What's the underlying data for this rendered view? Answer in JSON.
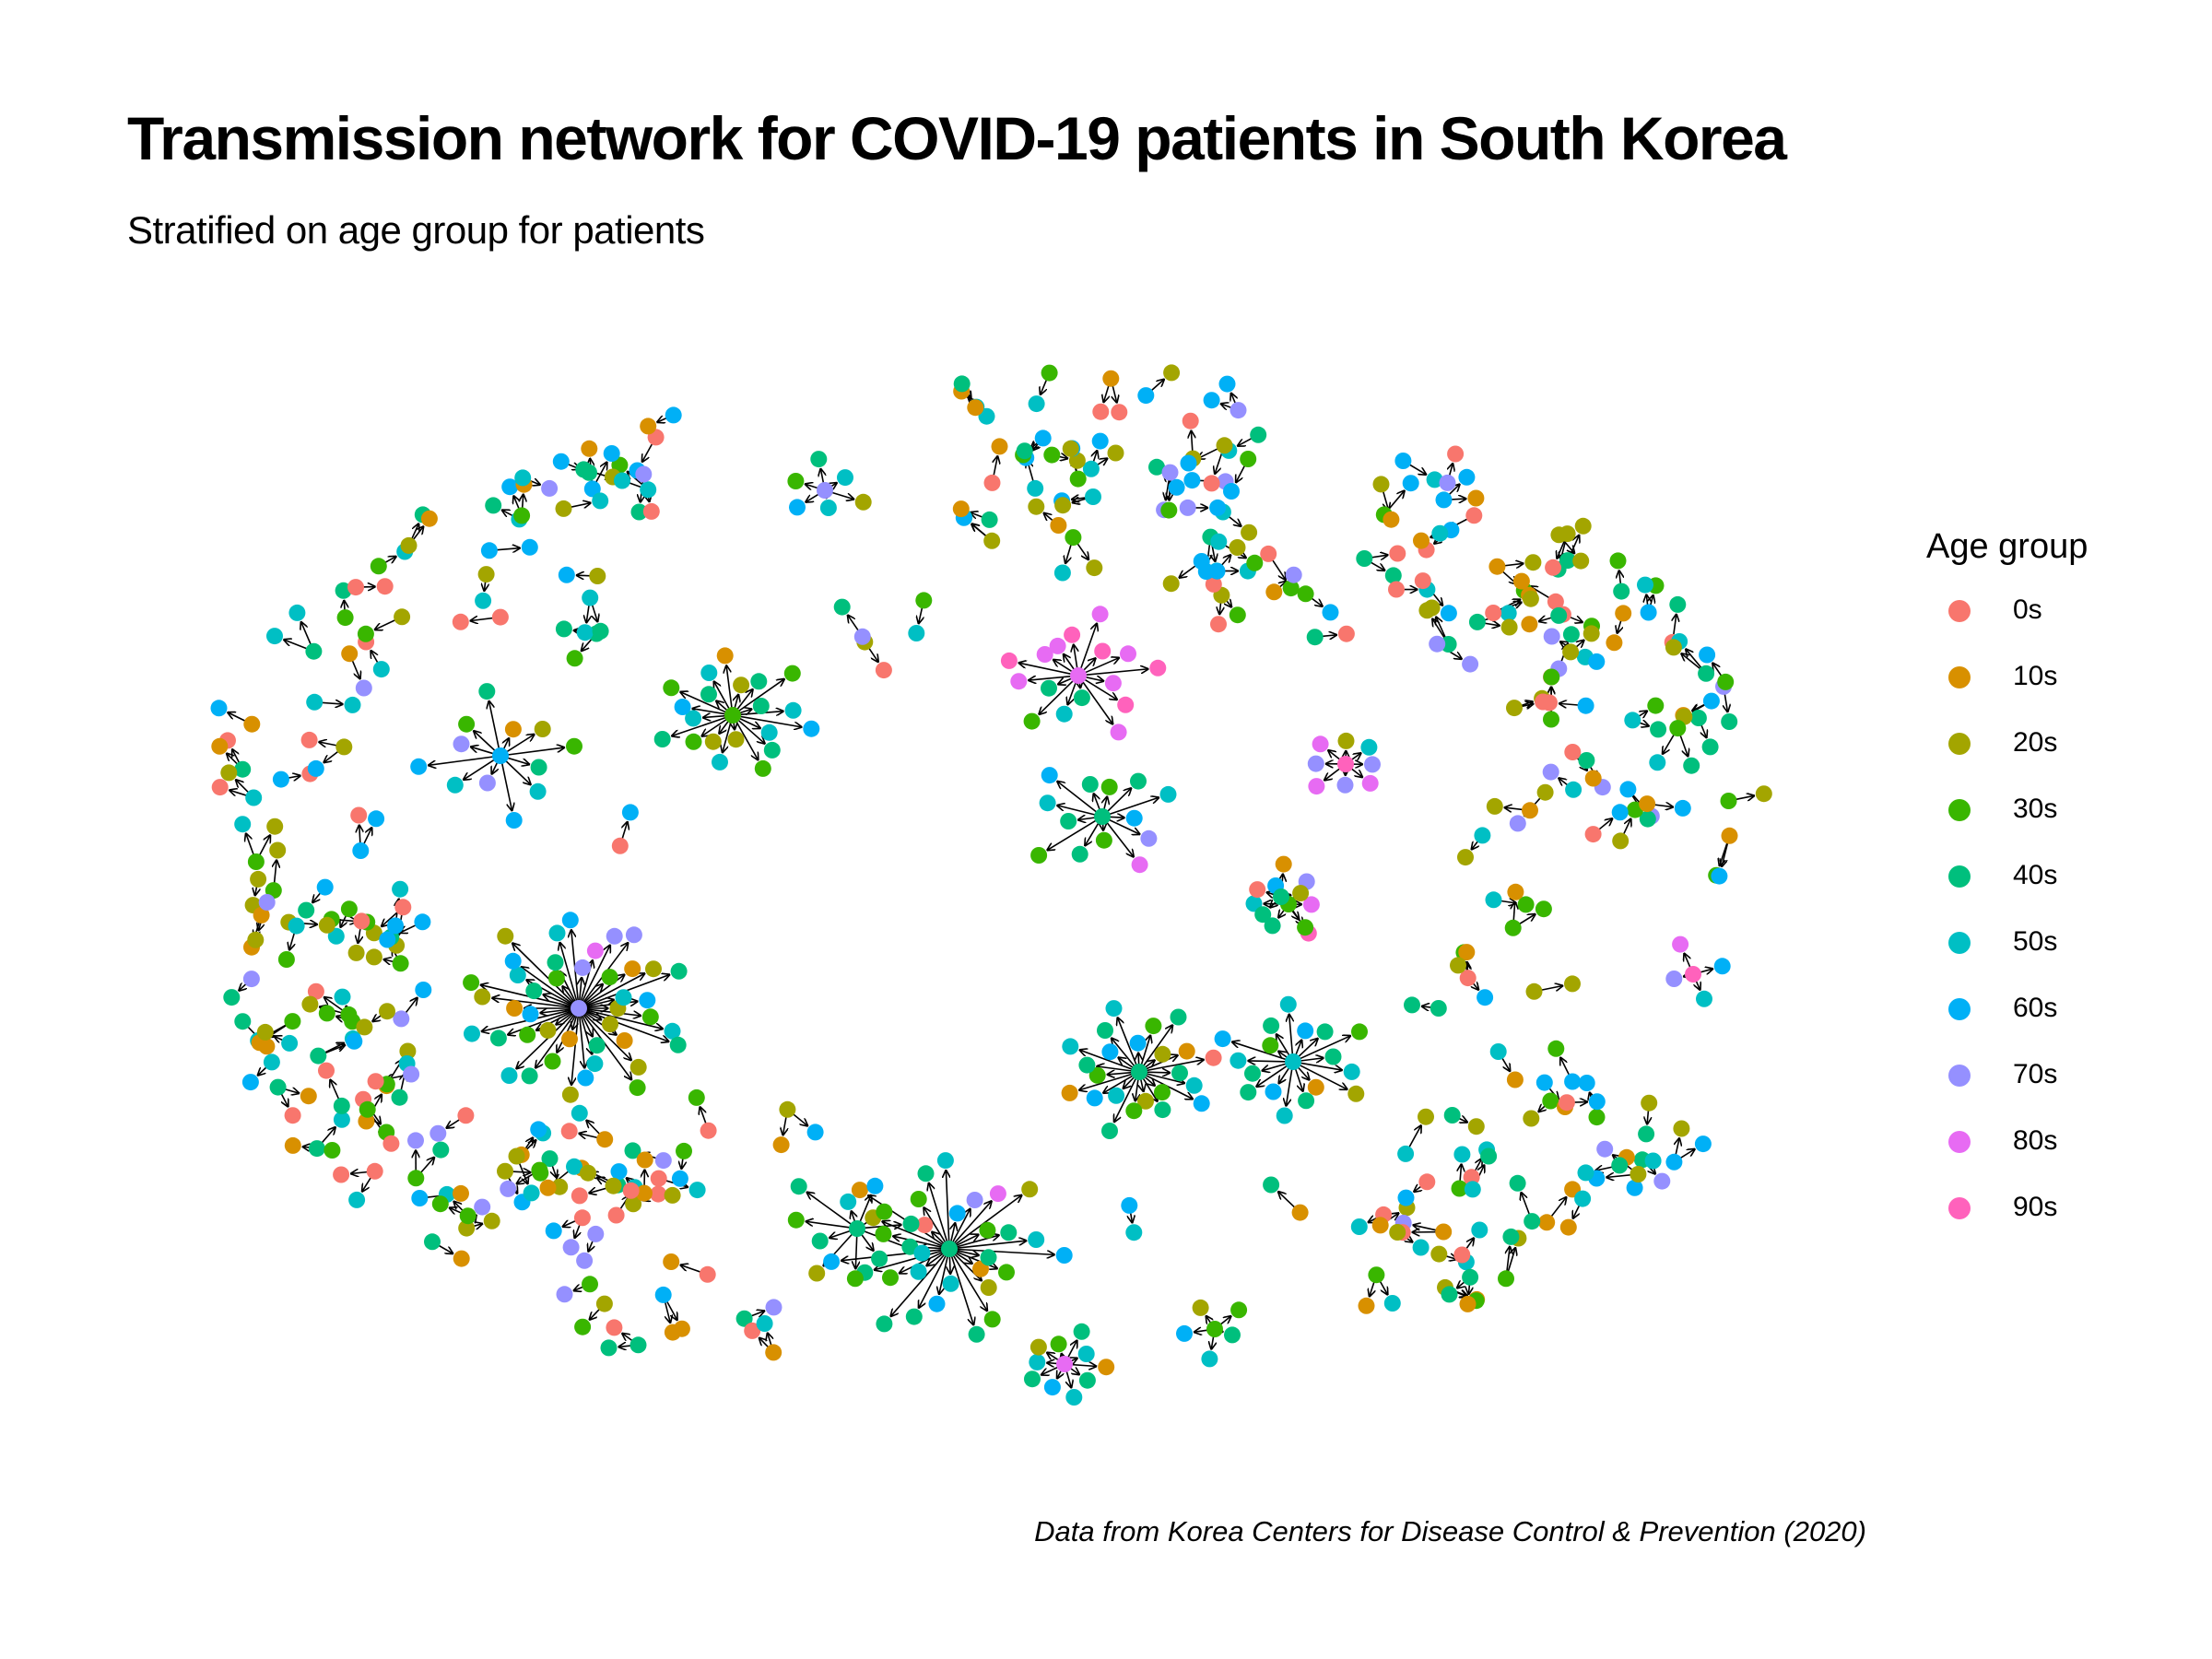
{
  "title": "Transmission network for COVID-19 patients in South Korea",
  "subtitle": "Stratified on age group for patients",
  "caption": "Data from Korea Centers for Disease Control & Prevention (2020)",
  "legend": {
    "title": "Age group",
    "items": [
      {
        "label": "0s",
        "color": "#F8766D"
      },
      {
        "label": "10s",
        "color": "#D89000"
      },
      {
        "label": "20s",
        "color": "#A3A500"
      },
      {
        "label": "30s",
        "color": "#39B600"
      },
      {
        "label": "40s",
        "color": "#00BF7D"
      },
      {
        "label": "50s",
        "color": "#00BFC4"
      },
      {
        "label": "60s",
        "color": "#00B0F6"
      },
      {
        "label": "70s",
        "color": "#9590FF"
      },
      {
        "label": "80s",
        "color": "#E76BF3"
      },
      {
        "label": "90s",
        "color": "#FF62BC"
      }
    ]
  },
  "chart_data": {
    "type": "network",
    "directed": true,
    "node_color_by": "age_group",
    "groups": [
      "0s",
      "10s",
      "20s",
      "30s",
      "40s",
      "50s",
      "60s",
      "70s",
      "80s",
      "90s"
    ],
    "clusters": [
      {
        "source": "70s",
        "targets": [
          "20s",
          "30s",
          "50s",
          "40s",
          "20s",
          "10s",
          "20s",
          "30s",
          "40s",
          "50s",
          "60s",
          "20s",
          "10s",
          "30s",
          "40s",
          "50s",
          "20s",
          "30s",
          "40s",
          "50s",
          "60s",
          "10s",
          "20s",
          "30s",
          "40s",
          "50s",
          "60s",
          "20s",
          "30s",
          "40s",
          "50s",
          "60s",
          "70s",
          "80s",
          "70s",
          "70s",
          "30s",
          "10s",
          "20s",
          "40s",
          "50s",
          "60s"
        ]
      },
      {
        "source": "40s",
        "targets": [
          "10s",
          "20s",
          "30s",
          "40s",
          "50s",
          "60s",
          "40s",
          "40s",
          "50s",
          "30s",
          "40s",
          "60s",
          "40s",
          "30s",
          "20s",
          "10s",
          "0s",
          "30s",
          "40s",
          "50s",
          "60s",
          "70s",
          "80s",
          "20s",
          "30s",
          "40s",
          "50s",
          "60s",
          "40s",
          "30s"
        ]
      },
      {
        "source": "40s",
        "targets": [
          "20s",
          "30s",
          "40s",
          "50s",
          "60s",
          "10s",
          "30s",
          "40s",
          "50s",
          "60s",
          "40s",
          "50s",
          "60s",
          "30s",
          "40s",
          "20s",
          "10s",
          "0s",
          "40s",
          "50s",
          "60s",
          "30s",
          "40s"
        ]
      },
      {
        "source": "30s",
        "targets": [
          "20s",
          "30s",
          "40s",
          "50s",
          "60s",
          "30s",
          "40s",
          "50s",
          "10s",
          "20s",
          "40s",
          "30s",
          "40s",
          "50s",
          "60s",
          "50s",
          "40s",
          "30s",
          "20s",
          "50s"
        ]
      },
      {
        "source": "50s",
        "targets": [
          "40s",
          "50s",
          "60s",
          "30s",
          "40s",
          "50s",
          "60s",
          "40s",
          "30s",
          "40s",
          "50s",
          "20s",
          "10s",
          "40s",
          "50s",
          "60s",
          "40s"
        ]
      },
      {
        "source": "60s",
        "targets": [
          "70s",
          "30s",
          "40s",
          "10s",
          "20s",
          "30s",
          "40s",
          "50s",
          "60s",
          "70s",
          "50s",
          "60s"
        ]
      },
      {
        "source": "80s",
        "targets": [
          "80s",
          "90s",
          "80s",
          "90s",
          "80s",
          "90s",
          "80s",
          "90s",
          "80s",
          "40s",
          "50s",
          "30s",
          "40s",
          "80s",
          "90s",
          "80s"
        ]
      },
      {
        "source": "40s",
        "targets": [
          "30s",
          "40s",
          "50s",
          "60s",
          "70s",
          "80s",
          "30s",
          "40s",
          "30s",
          "40s",
          "50s",
          "60s",
          "40s"
        ]
      },
      {
        "source": "40s",
        "targets": [
          "30s",
          "40s",
          "50s",
          "40s",
          "30s",
          "20s",
          "40s",
          "30s",
          "40s",
          "50s",
          "60s"
        ]
      },
      {
        "source": "90s",
        "targets": [
          "70s",
          "80s",
          "70s",
          "80s",
          "70s",
          "80s",
          "20s",
          "50s"
        ]
      },
      {
        "source": "80s",
        "targets": [
          "40s",
          "50s",
          "60s",
          "40s",
          "50s",
          "20s",
          "30s",
          "40s",
          "50s",
          "10s"
        ]
      },
      {
        "source": "70s",
        "targets": [
          "50s",
          "60s",
          "30s",
          "40s",
          "50s",
          "20s"
        ]
      },
      {
        "source": "30s",
        "targets": [
          "40s",
          "50s",
          "60s",
          "70s",
          "80s",
          "90s"
        ]
      },
      {
        "source": "90s",
        "targets": [
          "70s",
          "80s",
          "60s",
          "50s"
        ]
      },
      {
        "source": "40s",
        "targets": [
          "0s",
          "10s",
          "20s",
          "30s",
          "40s"
        ]
      },
      {
        "source": "30s",
        "targets": [
          "20s",
          "30s",
          "40s",
          "50s",
          "60s"
        ]
      }
    ]
  }
}
